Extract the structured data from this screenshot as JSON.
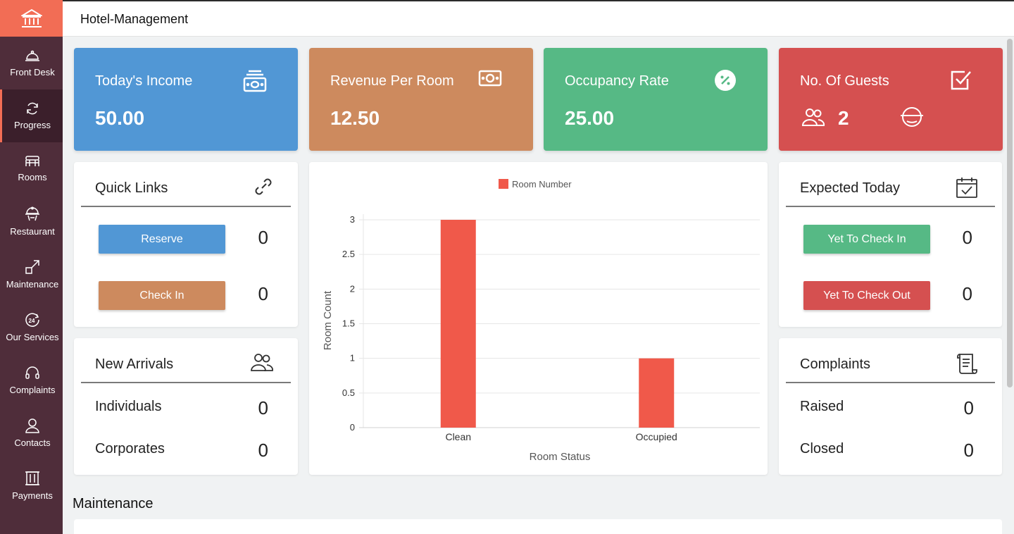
{
  "app": {
    "title": "Hotel-Management"
  },
  "sidebar": {
    "items": [
      {
        "label": "Front Desk",
        "icon": "bell-icon"
      },
      {
        "label": "Progress",
        "icon": "refresh-icon",
        "active": true
      },
      {
        "label": "Rooms",
        "icon": "bed-icon"
      },
      {
        "label": "Restaurant",
        "icon": "dish-icon"
      },
      {
        "label": "Maintenance",
        "icon": "expand-icon"
      },
      {
        "label": "Our Services",
        "icon": "24h-icon"
      },
      {
        "label": "Complaints",
        "icon": "headphones-icon"
      },
      {
        "label": "Contacts",
        "icon": "user-icon"
      },
      {
        "label": "Payments",
        "icon": "door-icon"
      }
    ]
  },
  "stats": {
    "income": {
      "label": "Today's Income",
      "value": "50.00",
      "color": "#5197d5"
    },
    "revenue": {
      "label": "Revenue Per Room",
      "value": "12.50",
      "color": "#cd8a5e"
    },
    "occupancy": {
      "label": "Occupancy Rate",
      "value": "25.00",
      "color": "#56b985"
    },
    "guests": {
      "label": "No. Of Guests",
      "value": "2",
      "color": "#d55050"
    }
  },
  "quick_links": {
    "title": "Quick Links",
    "reserve": {
      "label": "Reserve",
      "count": "0",
      "color": "#5197d5"
    },
    "checkin": {
      "label": "Check In",
      "count": "0",
      "color": "#cd8a5e"
    }
  },
  "expected_today": {
    "title": "Expected Today",
    "yet_in": {
      "label": "Yet To Check In",
      "count": "0",
      "color": "#56b985"
    },
    "yet_out": {
      "label": "Yet To Check Out",
      "count": "0",
      "color": "#d55050"
    }
  },
  "new_arrivals": {
    "title": "New Arrivals",
    "individuals": {
      "label": "Individuals",
      "count": "0"
    },
    "corporates": {
      "label": "Corporates",
      "count": "0"
    }
  },
  "complaints": {
    "title": "Complaints",
    "raised": {
      "label": "Raised",
      "count": "0"
    },
    "closed": {
      "label": "Closed",
      "count": "0"
    }
  },
  "chart_data": {
    "type": "bar",
    "categories": [
      "Clean",
      "Occupied"
    ],
    "series": [
      {
        "name": "Room Number",
        "values": [
          3,
          1
        ],
        "color": "#f0594a"
      }
    ],
    "xlabel": "Room Status",
    "ylabel": "Room Count",
    "ylim": [
      0,
      3
    ],
    "yticks": [
      "0",
      "0.5",
      "1",
      "1.5",
      "2",
      "2.5",
      "3"
    ],
    "grid": true,
    "legend": "top"
  },
  "section": {
    "title": "Maintenance"
  }
}
